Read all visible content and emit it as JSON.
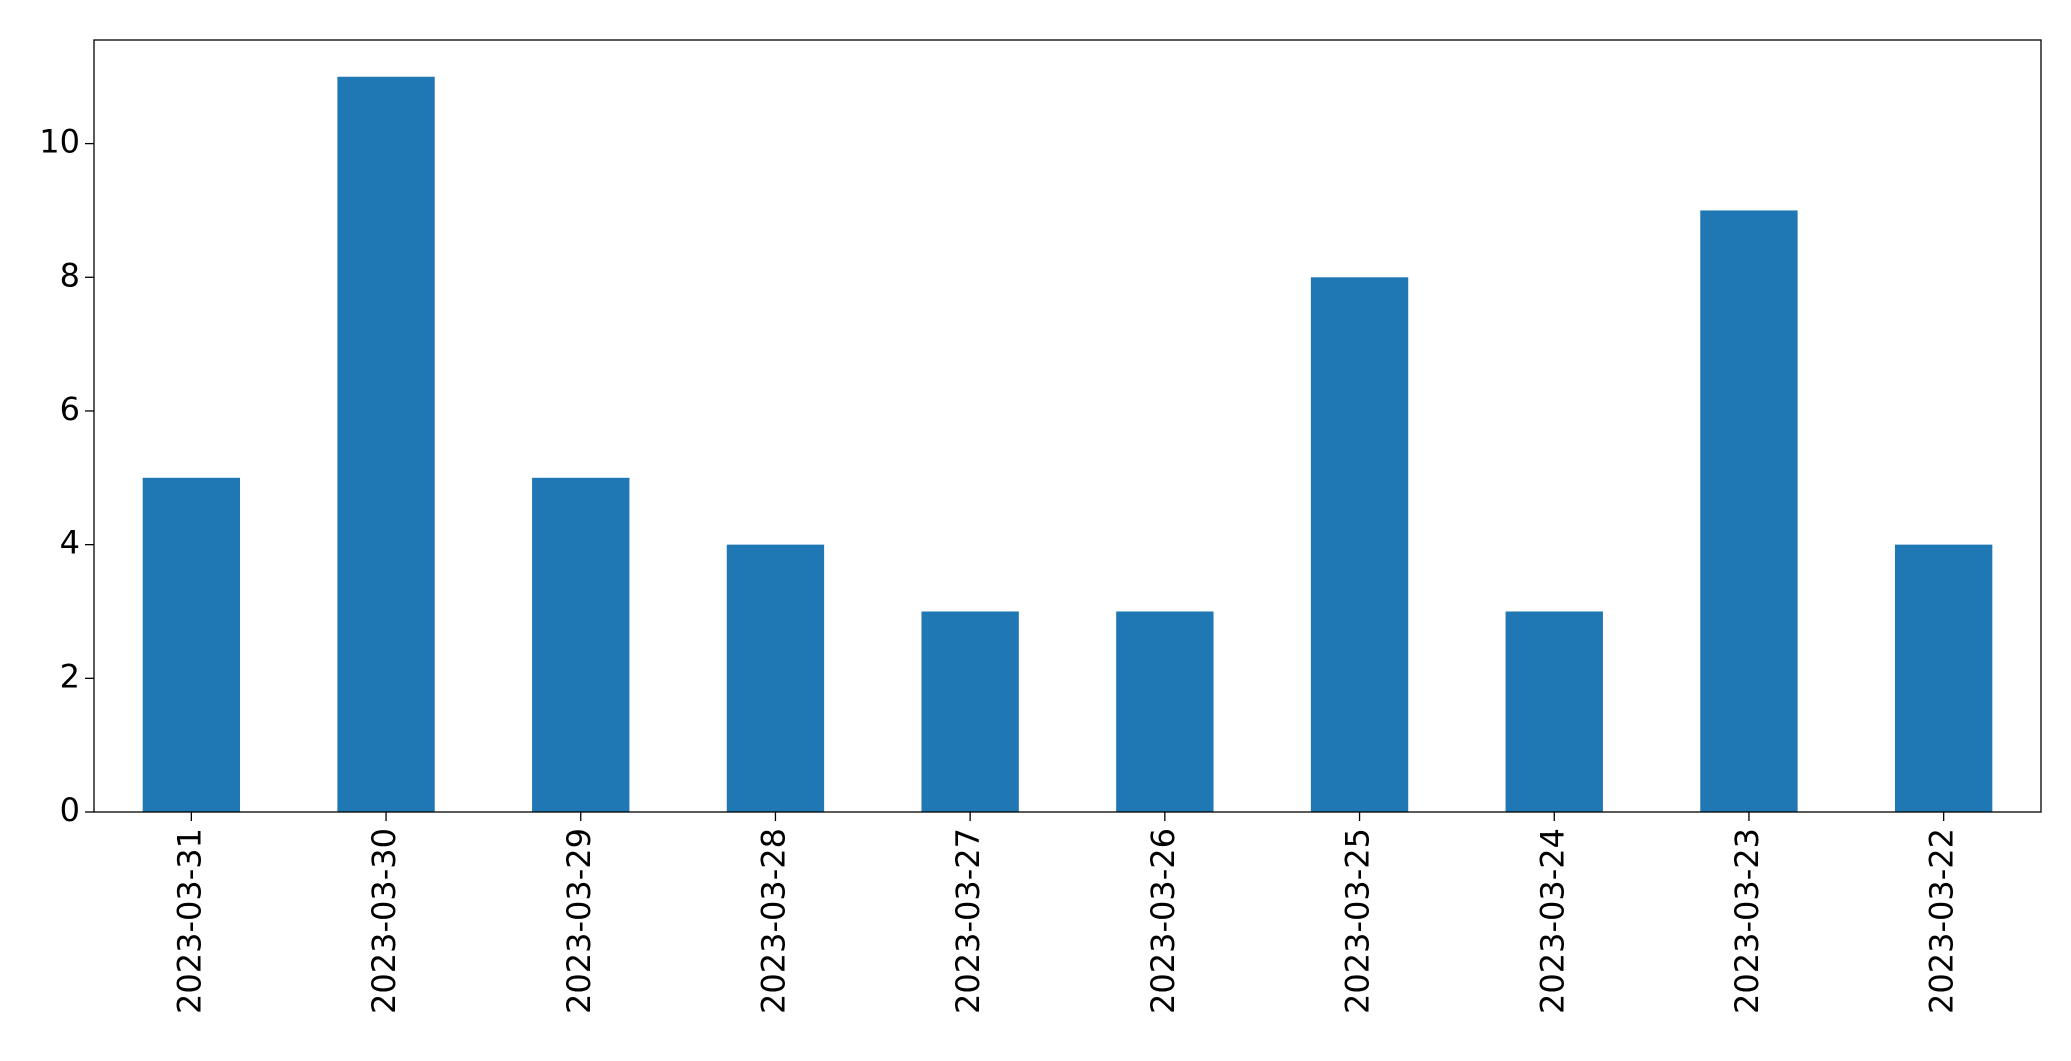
{
  "chart_data": {
    "type": "bar",
    "categories": [
      "2023-03-31",
      "2023-03-30",
      "2023-03-29",
      "2023-03-28",
      "2023-03-27",
      "2023-03-26",
      "2023-03-25",
      "2023-03-24",
      "2023-03-23",
      "2023-03-22"
    ],
    "values": [
      5,
      11,
      5,
      4,
      3,
      3,
      8,
      3,
      9,
      4
    ],
    "color": "#1f77b4",
    "ylim": [
      0,
      11.55
    ],
    "yticks": [
      0,
      2,
      4,
      6,
      8,
      10
    ],
    "grid": false
  }
}
